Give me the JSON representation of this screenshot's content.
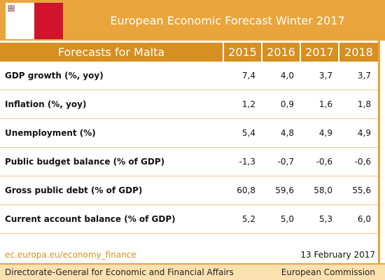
{
  "header": {
    "title": "European Economic Forecast Winter 2017"
  },
  "table": {
    "corner": "Forecasts for Malta",
    "columns": [
      "2015",
      "2016",
      "2017",
      "2018"
    ],
    "rows": [
      [
        "GDP growth (%, yoy)",
        "7,4",
        "4,0",
        "3,7",
        "3,7"
      ],
      [
        "Inflation (%, yoy)",
        "1,2",
        "0,9",
        "1,6",
        "1,8"
      ],
      [
        "Unemployment (%)",
        "5,4",
        "4,8",
        "4,9",
        "4,9"
      ],
      [
        "Public budget balance (% of GDP)",
        "-1,3",
        "-0,7",
        "-0,6",
        "-0,6"
      ],
      [
        "Gross public debt (% of GDP)",
        "60,8",
        "59,6",
        "58,0",
        "55,6"
      ],
      [
        "Current account balance (% of GDP)",
        "5,2",
        "5,0",
        "5,3",
        "6,0"
      ]
    ]
  },
  "footer": {
    "link": "ec.europa.eu/economy_finance",
    "date": "13 February 2017",
    "department": "Directorate-General for Economic and Financial Affairs",
    "institution": "European Commission"
  }
}
